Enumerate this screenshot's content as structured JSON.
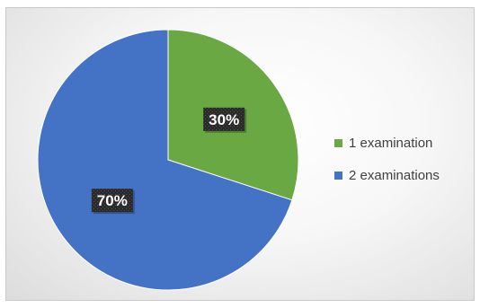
{
  "chart_data": {
    "type": "pie",
    "title": "",
    "categories": [
      "1 examination",
      "2 examinations"
    ],
    "values": [
      30,
      70
    ],
    "data_labels": [
      "30%",
      "70%"
    ],
    "colors": [
      "#6aa843",
      "#4472c4"
    ],
    "legend_position": "right",
    "start_angle": "12 o'clock, clockwise"
  }
}
